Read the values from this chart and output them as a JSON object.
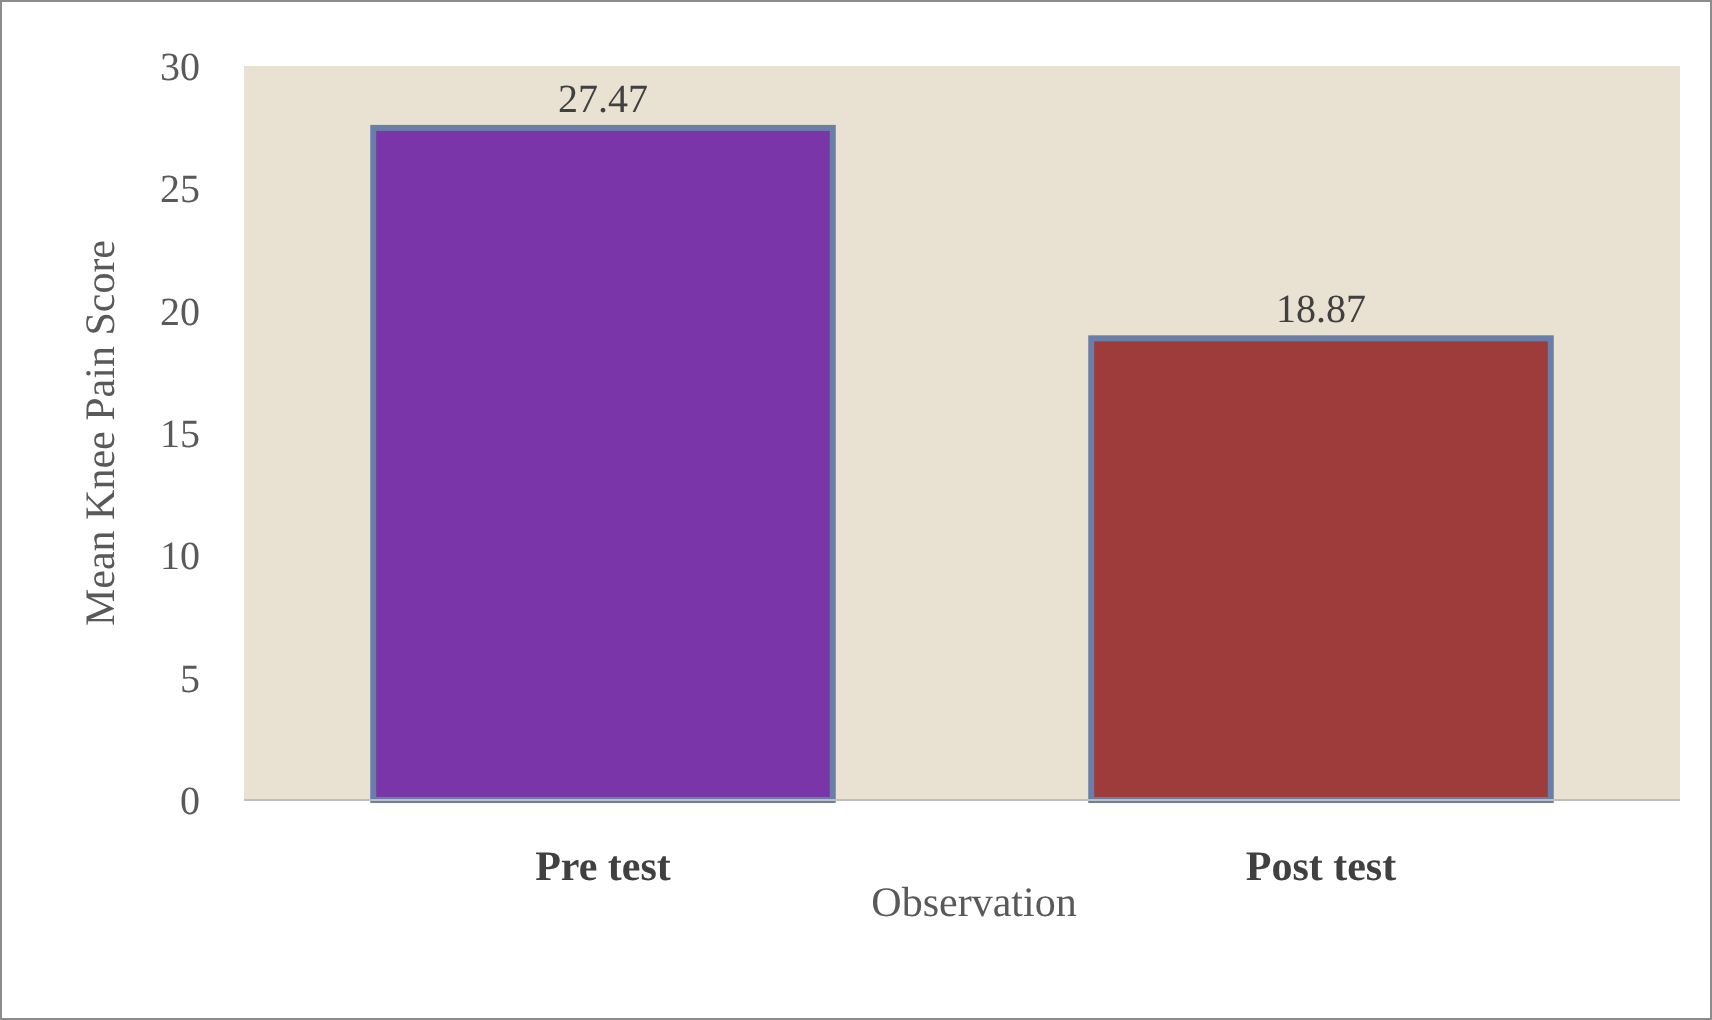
{
  "chart_data": {
    "type": "bar",
    "xlabel": "Observation",
    "ylabel": "Mean Knee Pain Score",
    "categories": [
      "Pre test",
      "Post test"
    ],
    "values": [
      27.47,
      18.87
    ],
    "colors": [
      "#7a35a8",
      "#9e3b3b"
    ],
    "ylim": [
      0,
      30
    ],
    "yticks": [
      0,
      5,
      10,
      15,
      20,
      25,
      30
    ],
    "data_labels": true
  }
}
